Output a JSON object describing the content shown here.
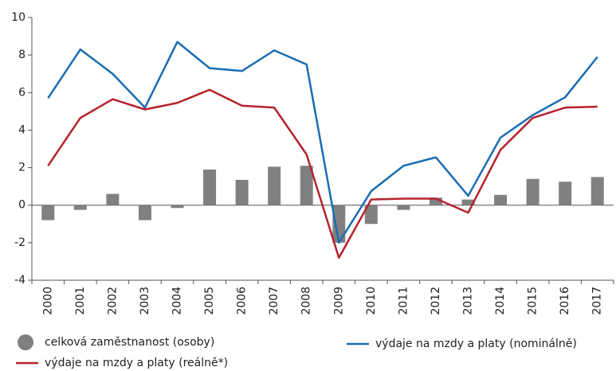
{
  "chart_data": {
    "type": "bar",
    "categories": [
      "2000",
      "2001",
      "2002",
      "2003",
      "2004",
      "2005",
      "2006",
      "2007",
      "2008",
      "2009",
      "2010",
      "2011",
      "2012",
      "2013",
      "2014",
      "2015",
      "2016",
      "2017"
    ],
    "series": [
      {
        "name": "celková zaměstnanost (osoby)",
        "type": "bar",
        "color": "#808080",
        "values": [
          -0.8,
          -0.25,
          0.6,
          -0.8,
          -0.15,
          1.9,
          1.35,
          2.05,
          2.1,
          -2.0,
          -1.0,
          -0.25,
          0.4,
          0.3,
          0.55,
          1.4,
          1.25,
          1.5
        ]
      },
      {
        "name": "výdaje na mzdy a platy (nominálně)",
        "type": "line",
        "color": "#1a6db3",
        "values": [
          5.7,
          8.3,
          7.0,
          5.2,
          8.7,
          7.3,
          7.15,
          8.25,
          7.5,
          -2.0,
          0.75,
          2.1,
          2.55,
          0.5,
          3.6,
          4.8,
          5.75,
          7.9
        ]
      },
      {
        "name": "výdaje na mzdy a platy (reálně*)",
        "type": "line",
        "color": "#b5232d",
        "values": [
          2.1,
          4.65,
          5.65,
          5.1,
          5.45,
          6.15,
          5.3,
          5.2,
          2.7,
          -2.8,
          0.3,
          0.35,
          0.35,
          -0.4,
          2.95,
          4.65,
          5.2,
          5.25
        ]
      }
    ],
    "ylim": [
      -4,
      10
    ],
    "yticks": [
      -4,
      -2,
      0,
      2,
      4,
      6,
      8,
      10
    ],
    "grid": false
  }
}
